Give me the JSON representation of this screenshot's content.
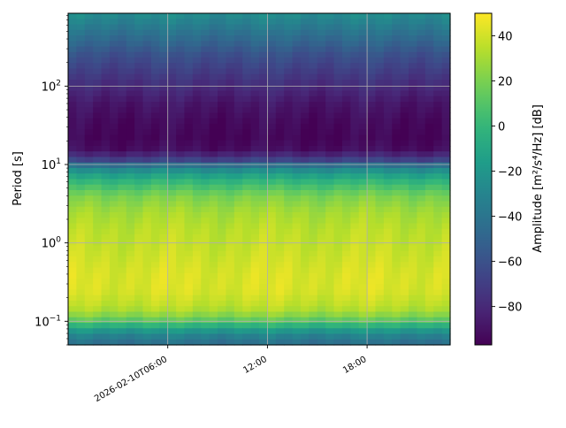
{
  "chart_data": {
    "type": "heatmap",
    "ylabel": "Period [s]",
    "colorbar_label": "Amplitude [m²/s⁴/Hz] [dB]",
    "y_scale": "log",
    "ylim": [
      0.05,
      850
    ],
    "xlim": [
      "2026-02-10T00:00",
      "2026-02-10T23:00"
    ],
    "x_ticks": [
      {
        "value": "2026-02-10T06:00",
        "label": "2026-02-10T06:00"
      },
      {
        "value": "2026-02-10T12:00",
        "label": "12:00"
      },
      {
        "value": "2026-02-10T18:00",
        "label": "18:00"
      }
    ],
    "y_ticks": [
      {
        "value": 0.1,
        "label": "10",
        "exp": "−1"
      },
      {
        "value": 1,
        "label": "10",
        "exp": "0"
      },
      {
        "value": 10,
        "label": "10",
        "exp": "1"
      },
      {
        "value": 100,
        "label": "10",
        "exp": "2"
      }
    ],
    "colorbar": {
      "range": [
        -97,
        50
      ],
      "ticks": [
        40,
        20,
        0,
        -20,
        -40,
        -60,
        -80
      ],
      "colormap": "viridis"
    },
    "grid": true,
    "profile": {
      "period": [
        850,
        500,
        250,
        120,
        60,
        35,
        22,
        16,
        12,
        10,
        8,
        6,
        4,
        2.5,
        1.5,
        0.8,
        0.4,
        0.25,
        0.15,
        0.11,
        0.09,
        0.075,
        0.062,
        0.05
      ],
      "amplitude_db": [
        -25,
        -40,
        -60,
        -75,
        -88,
        -93,
        -95,
        -92,
        -75,
        -45,
        -20,
        0,
        20,
        30,
        35,
        38,
        42,
        42,
        35,
        20,
        0,
        -20,
        -35,
        -45
      ]
    }
  }
}
